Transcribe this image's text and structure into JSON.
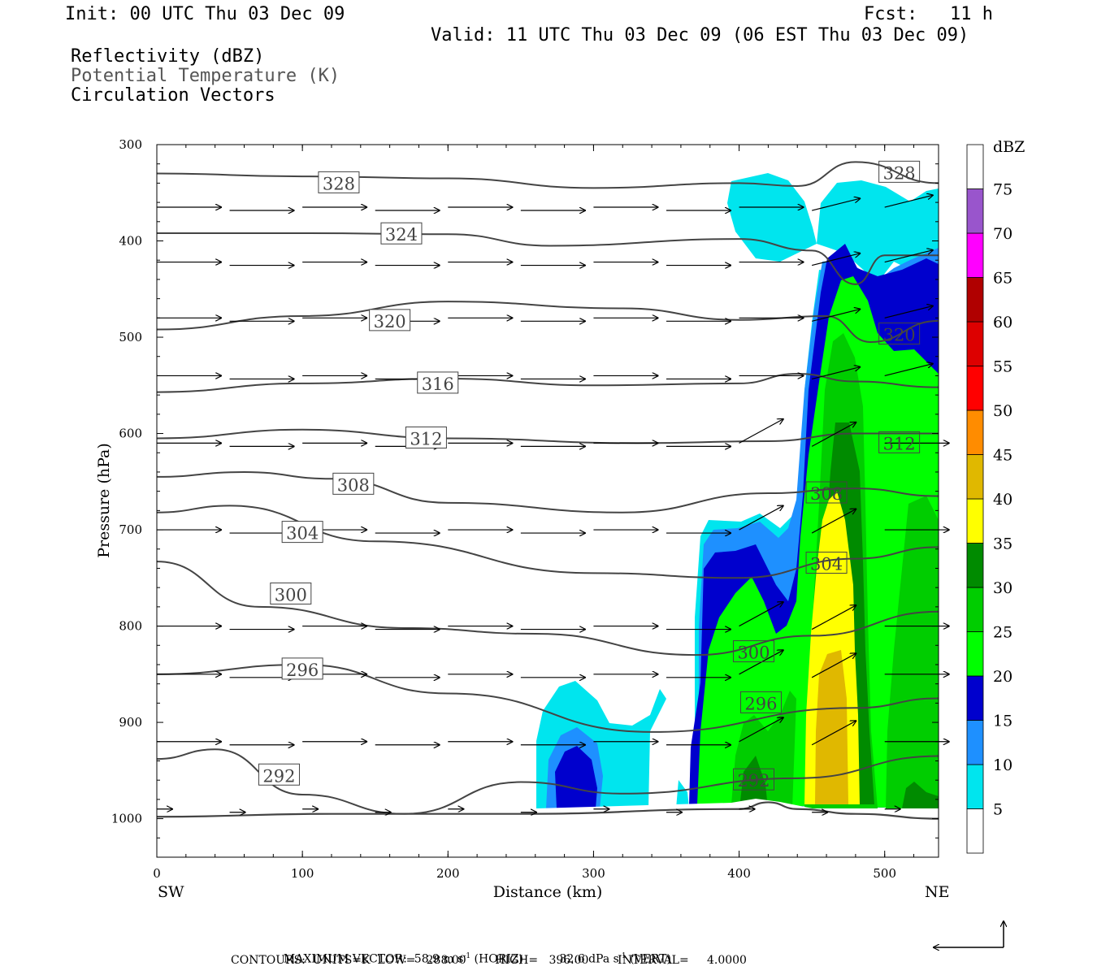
{
  "header": {
    "init": "Init: 00 UTC Thu 03 Dec 09",
    "fcst": "Fcst:   11 h",
    "valid": "Valid: 11 UTC Thu 03 Dec 09 (06 EST Thu 03 Dec 09)",
    "field1": "Reflectivity (dBZ)",
    "field2": "Potential Temperature (K)",
    "field3": "Circulation Vectors"
  },
  "footer": {
    "max_vector_prefix": "MAXIMUM VECTOR:  58.9 m s",
    "max_vector_mid": " (HORIZ)          32.6 dPa s",
    "max_vector_suffix": " (VERT)",
    "sup": "-1",
    "contours": "CONTOURS:  UNITS=K  LOW=   288.00        HIGH=   396.00        INTERVAL=     4.0000"
  },
  "chart_data": {
    "type": "contour",
    "xlabel": "Distance (km)",
    "ylabel": "Pressure (hPa)",
    "xlim": [
      0,
      537
    ],
    "ylim": [
      300,
      1040
    ],
    "y_scale": "linear, inverted",
    "x_ticks": [
      0,
      100,
      200,
      300,
      400,
      500
    ],
    "y_ticks": [
      300,
      400,
      500,
      600,
      700,
      800,
      900,
      1000
    ],
    "x_end_labels": {
      "left": "SW",
      "right": "NE"
    },
    "colorbar": {
      "title": "dBZ",
      "labels": [
        "5",
        "10",
        "15",
        "20",
        "25",
        "30",
        "35",
        "40",
        "45",
        "50",
        "55",
        "60",
        "65",
        "70",
        "75"
      ],
      "colors": [
        "#ffffff",
        "#00e5ee",
        "#1e90ff",
        "#0000cd",
        "#00ff00",
        "#00cd00",
        "#008b00",
        "#ffff00",
        "#e0b800",
        "#ff8c00",
        "#ff0000",
        "#dd0000",
        "#b00000",
        "#ff00ff",
        "#9955cc",
        "#ffffff"
      ]
    },
    "theta_contours": [
      {
        "value": 328,
        "label": "328",
        "points": [
          [
            0,
            330
          ],
          [
            100,
            333
          ],
          [
            200,
            335
          ],
          [
            300,
            345
          ],
          [
            400,
            340
          ],
          [
            440,
            343
          ],
          [
            480,
            318
          ],
          [
            537,
            340
          ]
        ]
      },
      {
        "value": 324,
        "label": "324",
        "points": [
          [
            0,
            392
          ],
          [
            100,
            392
          ],
          [
            200,
            393
          ],
          [
            270,
            405
          ],
          [
            400,
            398
          ],
          [
            450,
            410
          ],
          [
            480,
            445
          ],
          [
            500,
            415
          ],
          [
            537,
            415
          ]
        ]
      },
      {
        "value": 320,
        "label": "320",
        "points": [
          [
            0,
            492
          ],
          [
            100,
            478
          ],
          [
            200,
            463
          ],
          [
            320,
            470
          ],
          [
            400,
            482
          ],
          [
            460,
            478
          ],
          [
            490,
            505
          ],
          [
            537,
            483
          ]
        ]
      },
      {
        "value": 316,
        "label": "316",
        "points": [
          [
            0,
            557
          ],
          [
            100,
            548
          ],
          [
            200,
            543
          ],
          [
            300,
            550
          ],
          [
            400,
            548
          ],
          [
            440,
            538
          ],
          [
            480,
            546
          ],
          [
            537,
            552
          ]
        ]
      },
      {
        "value": 312,
        "label": "312",
        "points": [
          [
            0,
            605
          ],
          [
            100,
            596
          ],
          [
            200,
            605
          ],
          [
            330,
            610
          ],
          [
            420,
            608
          ],
          [
            480,
            600
          ],
          [
            537,
            600
          ]
        ]
      },
      {
        "value": 308,
        "label": "308",
        "points": [
          [
            0,
            645
          ],
          [
            60,
            640
          ],
          [
            120,
            647
          ],
          [
            200,
            672
          ],
          [
            320,
            682
          ],
          [
            420,
            662
          ],
          [
            480,
            657
          ],
          [
            537,
            665
          ]
        ]
      },
      {
        "value": 304,
        "label": "304",
        "points": [
          [
            0,
            682
          ],
          [
            50,
            675
          ],
          [
            150,
            712
          ],
          [
            300,
            745
          ],
          [
            400,
            750
          ],
          [
            480,
            730
          ],
          [
            537,
            718
          ]
        ]
      },
      {
        "value": 300,
        "label": "300",
        "points": [
          [
            0,
            733
          ],
          [
            70,
            780
          ],
          [
            170,
            802
          ],
          [
            260,
            808
          ],
          [
            370,
            830
          ],
          [
            450,
            810
          ],
          [
            537,
            785
          ]
        ]
      },
      {
        "value": 296,
        "label": "296",
        "points": [
          [
            0,
            850
          ],
          [
            100,
            840
          ],
          [
            200,
            870
          ],
          [
            340,
            910
          ],
          [
            480,
            885
          ],
          [
            537,
            875
          ]
        ]
      },
      {
        "value": 292,
        "label": "292",
        "points": [
          [
            0,
            938
          ],
          [
            40,
            928
          ],
          [
            100,
            975
          ],
          [
            170,
            995
          ],
          [
            250,
            962
          ],
          [
            320,
            974
          ],
          [
            440,
            958
          ],
          [
            537,
            935
          ]
        ]
      },
      {
        "value": 288,
        "label": "",
        "points": [
          [
            0,
            998
          ],
          [
            120,
            995
          ],
          [
            250,
            995
          ],
          [
            400,
            990
          ],
          [
            420,
            983
          ],
          [
            440,
            990
          ],
          [
            480,
            995
          ],
          [
            537,
            1000
          ]
        ]
      }
    ]
  }
}
